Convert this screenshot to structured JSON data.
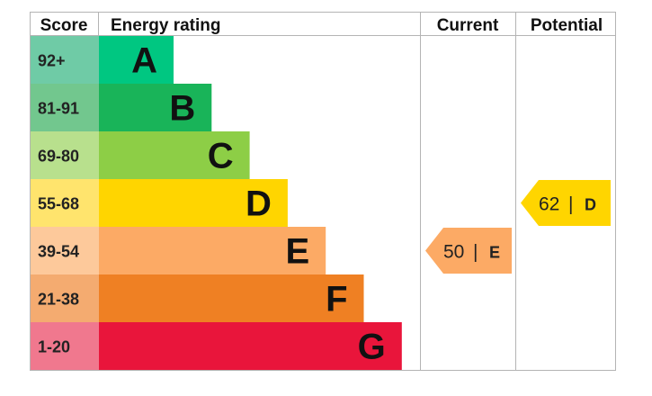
{
  "chart_data": {
    "type": "bar",
    "headers": {
      "score": "Score",
      "rating": "Energy rating",
      "current": "Current",
      "potential": "Potential"
    },
    "bands": [
      {
        "range": "92+",
        "letter": "A",
        "color": "#00c781",
        "score_color": "#6fcba6"
      },
      {
        "range": "81-91",
        "letter": "B",
        "color": "#19b459",
        "score_color": "#72c78e"
      },
      {
        "range": "69-80",
        "letter": "C",
        "color": "#8dce46",
        "score_color": "#b8e08d"
      },
      {
        "range": "55-68",
        "letter": "D",
        "color": "#ffd500",
        "score_color": "#ffe46d"
      },
      {
        "range": "39-54",
        "letter": "E",
        "color": "#fcaa65",
        "score_color": "#fdc99b"
      },
      {
        "range": "21-38",
        "letter": "F",
        "color": "#ef8023",
        "score_color": "#f4ab70"
      },
      {
        "range": "1-20",
        "letter": "G",
        "color": "#e9153b",
        "score_color": "#f0788e"
      }
    ],
    "current": {
      "value": 50,
      "letter": "E",
      "color": "#fcaa65"
    },
    "potential": {
      "value": 62,
      "letter": "D",
      "color": "#ffd500"
    }
  }
}
